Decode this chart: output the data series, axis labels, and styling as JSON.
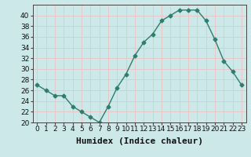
{
  "x": [
    0,
    1,
    2,
    3,
    4,
    5,
    6,
    7,
    8,
    9,
    10,
    11,
    12,
    13,
    14,
    15,
    16,
    17,
    18,
    19,
    20,
    21,
    22,
    23
  ],
  "y": [
    27,
    26,
    25,
    25,
    23,
    22,
    21,
    20,
    23,
    26.5,
    29,
    32.5,
    35,
    36.5,
    39,
    40,
    41,
    41,
    41,
    39,
    35.5,
    31.5,
    29.5,
    27
  ],
  "line_color": "#2e7d6e",
  "marker": "D",
  "marker_size": 2.5,
  "bg_color": "#cce8e8",
  "grid_color": "#e8c8c8",
  "xlabel": "Humidex (Indice chaleur)",
  "ylim": [
    20,
    42
  ],
  "yticks": [
    20,
    22,
    24,
    26,
    28,
    30,
    32,
    34,
    36,
    38,
    40
  ],
  "xticks": [
    0,
    1,
    2,
    3,
    4,
    5,
    6,
    7,
    8,
    9,
    10,
    11,
    12,
    13,
    14,
    15,
    16,
    17,
    18,
    19,
    20,
    21,
    22,
    23
  ],
  "xlabel_fontsize": 8,
  "tick_fontsize": 6.5,
  "line_width": 1.0
}
